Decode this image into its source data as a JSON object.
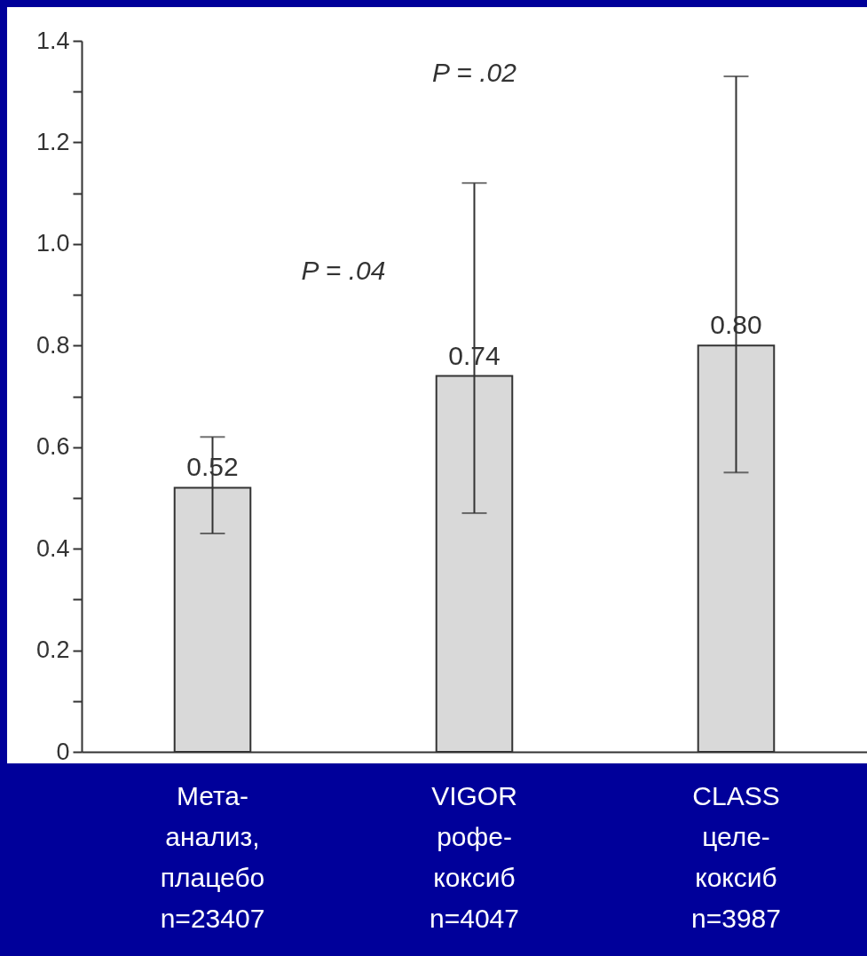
{
  "chart_data": {
    "type": "bar",
    "categories": [
      "Мета-\nанализ,\nплацебо\nn=23407",
      "VIGOR\nрофе-\nкоксиб\nn=4047",
      "CLASS\nцеле-\nкоксиб\nn=3987"
    ],
    "values": [
      0.52,
      0.74,
      0.8
    ],
    "value_labels": [
      "0.52",
      "0.74",
      "0.80"
    ],
    "errors": [
      [
        0.43,
        0.62
      ],
      [
        0.47,
        1.12
      ],
      [
        0.55,
        1.33
      ]
    ],
    "color": "#d9d9d9",
    "ylim": [
      0,
      1.4
    ],
    "yticks": [
      0,
      {
        "value": 0.1,
        "label": null
      },
      0.2,
      {
        "value": 0.3,
        "label": null
      },
      0.4,
      {
        "value": 0.5,
        "label": null
      },
      0.6,
      {
        "value": 0.7,
        "label": null
      },
      0.8,
      {
        "value": 0.9,
        "label": null
      },
      {
        "value": 1.0,
        "label": "1.0"
      },
      {
        "value": 1.1,
        "label": null
      },
      1.2,
      {
        "value": 1.3,
        "label": null
      },
      1.4
    ],
    "grid": false,
    "annotations": [
      "P = .04",
      "P = .02"
    ]
  }
}
